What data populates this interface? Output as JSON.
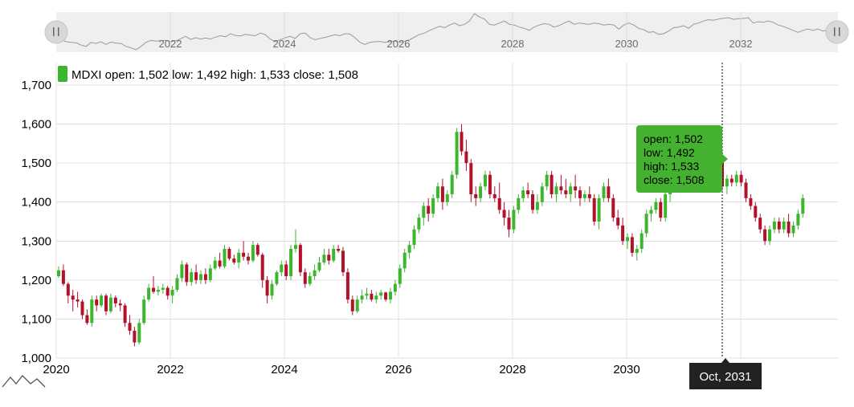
{
  "chart_data": {
    "type": "candlestick",
    "ticker": "MDXI",
    "y_ticks": [
      "1,000",
      "1,100",
      "1,200",
      "1,300",
      "1,400",
      "1,500",
      "1,600",
      "1,700"
    ],
    "y_tick_values": [
      1000,
      1100,
      1200,
      1300,
      1400,
      1500,
      1600,
      1700
    ],
    "ylim": [
      1000,
      1700
    ],
    "x_ticks": [
      "2020",
      "2022",
      "2024",
      "2026",
      "2028",
      "2030",
      "2032"
    ],
    "scrollbar_ticks": [
      "2022",
      "2024",
      "2026",
      "2028",
      "2030",
      "2032"
    ],
    "legend": {
      "label": "MDXI",
      "text": "open: 1,502 low: 1,492 high: 1,533 close: 1,508"
    },
    "tooltip": {
      "open": "open: 1,502",
      "low": "low: 1,492",
      "high": "high: 1,533",
      "close": "close: 1,508"
    },
    "cursor_label": "Oct, 2031",
    "cursor_index": 140,
    "grid": true,
    "colors": {
      "up": "#3cb62d",
      "down": "#b3102a",
      "tooltip": "#44b130",
      "cursor_label_bg": "#222222"
    },
    "start": "2020-01",
    "end": "2033-10",
    "interval": "month",
    "ohlc": [
      [
        1210,
        1205,
        1235,
        1225
      ],
      [
        1225,
        1185,
        1240,
        1190
      ],
      [
        1190,
        1140,
        1195,
        1160
      ],
      [
        1160,
        1120,
        1175,
        1150
      ],
      [
        1150,
        1130,
        1170,
        1145
      ],
      [
        1145,
        1100,
        1150,
        1110
      ],
      [
        1110,
        1085,
        1125,
        1090
      ],
      [
        1090,
        1080,
        1160,
        1150
      ],
      [
        1150,
        1120,
        1160,
        1135
      ],
      [
        1135,
        1130,
        1165,
        1160
      ],
      [
        1160,
        1110,
        1165,
        1120
      ],
      [
        1120,
        1115,
        1165,
        1155
      ],
      [
        1155,
        1130,
        1160,
        1140
      ],
      [
        1140,
        1120,
        1150,
        1135
      ],
      [
        1135,
        1080,
        1140,
        1090
      ],
      [
        1090,
        1060,
        1110,
        1070
      ],
      [
        1070,
        1030,
        1080,
        1040
      ],
      [
        1040,
        1035,
        1100,
        1090
      ],
      [
        1090,
        1085,
        1160,
        1150
      ],
      [
        1150,
        1145,
        1190,
        1180
      ],
      [
        1180,
        1165,
        1210,
        1170
      ],
      [
        1170,
        1160,
        1185,
        1175
      ],
      [
        1175,
        1165,
        1190,
        1180
      ],
      [
        1180,
        1150,
        1185,
        1160
      ],
      [
        1160,
        1140,
        1185,
        1175
      ],
      [
        1175,
        1170,
        1215,
        1205
      ],
      [
        1205,
        1195,
        1250,
        1240
      ],
      [
        1240,
        1185,
        1245,
        1195
      ],
      [
        1195,
        1185,
        1230,
        1220
      ],
      [
        1220,
        1190,
        1240,
        1200
      ],
      [
        1200,
        1190,
        1225,
        1215
      ],
      [
        1215,
        1190,
        1230,
        1200
      ],
      [
        1200,
        1195,
        1240,
        1230
      ],
      [
        1230,
        1225,
        1260,
        1250
      ],
      [
        1250,
        1230,
        1270,
        1235
      ],
      [
        1235,
        1230,
        1290,
        1280
      ],
      [
        1280,
        1250,
        1285,
        1255
      ],
      [
        1255,
        1240,
        1265,
        1245
      ],
      [
        1245,
        1230,
        1280,
        1270
      ],
      [
        1270,
        1250,
        1300,
        1260
      ],
      [
        1260,
        1240,
        1270,
        1250
      ],
      [
        1250,
        1245,
        1300,
        1290
      ],
      [
        1290,
        1260,
        1295,
        1265
      ],
      [
        1265,
        1180,
        1270,
        1200
      ],
      [
        1200,
        1140,
        1210,
        1160
      ],
      [
        1160,
        1150,
        1200,
        1190
      ],
      [
        1190,
        1185,
        1225,
        1220
      ],
      [
        1220,
        1210,
        1250,
        1240
      ],
      [
        1240,
        1200,
        1250,
        1210
      ],
      [
        1210,
        1200,
        1290,
        1280
      ],
      [
        1280,
        1270,
        1330,
        1290
      ],
      [
        1290,
        1210,
        1295,
        1220
      ],
      [
        1220,
        1180,
        1230,
        1190
      ],
      [
        1190,
        1185,
        1220,
        1210
      ],
      [
        1210,
        1200,
        1240,
        1225
      ],
      [
        1225,
        1220,
        1260,
        1245
      ],
      [
        1245,
        1240,
        1280,
        1265
      ],
      [
        1265,
        1240,
        1280,
        1250
      ],
      [
        1250,
        1245,
        1290,
        1280
      ],
      [
        1280,
        1270,
        1290,
        1275
      ],
      [
        1275,
        1210,
        1285,
        1220
      ],
      [
        1220,
        1140,
        1230,
        1150
      ],
      [
        1150,
        1110,
        1160,
        1120
      ],
      [
        1120,
        1115,
        1160,
        1150
      ],
      [
        1150,
        1140,
        1175,
        1160
      ],
      [
        1160,
        1150,
        1180,
        1165
      ],
      [
        1165,
        1145,
        1175,
        1150
      ],
      [
        1150,
        1140,
        1170,
        1160
      ],
      [
        1160,
        1150,
        1175,
        1168
      ],
      [
        1168,
        1145,
        1170,
        1150
      ],
      [
        1150,
        1140,
        1180,
        1170
      ],
      [
        1170,
        1160,
        1200,
        1190
      ],
      [
        1190,
        1180,
        1240,
        1230
      ],
      [
        1230,
        1220,
        1280,
        1270
      ],
      [
        1270,
        1255,
        1300,
        1290
      ],
      [
        1290,
        1280,
        1340,
        1330
      ],
      [
        1330,
        1320,
        1370,
        1360
      ],
      [
        1360,
        1340,
        1400,
        1390
      ],
      [
        1390,
        1350,
        1410,
        1370
      ],
      [
        1370,
        1360,
        1420,
        1410
      ],
      [
        1410,
        1400,
        1450,
        1440
      ],
      [
        1440,
        1380,
        1460,
        1400
      ],
      [
        1400,
        1390,
        1430,
        1420
      ],
      [
        1420,
        1410,
        1480,
        1470
      ],
      [
        1470,
        1460,
        1590,
        1580
      ],
      [
        1580,
        1520,
        1600,
        1530
      ],
      [
        1530,
        1480,
        1560,
        1500
      ],
      [
        1500,
        1400,
        1510,
        1420
      ],
      [
        1420,
        1390,
        1440,
        1410
      ],
      [
        1410,
        1400,
        1450,
        1440
      ],
      [
        1440,
        1430,
        1480,
        1470
      ],
      [
        1470,
        1410,
        1480,
        1420
      ],
      [
        1420,
        1400,
        1440,
        1410
      ],
      [
        1410,
        1370,
        1450,
        1380
      ],
      [
        1380,
        1340,
        1400,
        1360
      ],
      [
        1360,
        1310,
        1380,
        1330
      ],
      [
        1330,
        1320,
        1390,
        1380
      ],
      [
        1380,
        1370,
        1420,
        1410
      ],
      [
        1410,
        1400,
        1440,
        1430
      ],
      [
        1430,
        1410,
        1450,
        1420
      ],
      [
        1420,
        1370,
        1430,
        1380
      ],
      [
        1380,
        1370,
        1420,
        1400
      ],
      [
        1400,
        1390,
        1450,
        1440
      ],
      [
        1440,
        1430,
        1480,
        1470
      ],
      [
        1470,
        1410,
        1480,
        1420
      ],
      [
        1420,
        1400,
        1450,
        1440
      ],
      [
        1440,
        1420,
        1470,
        1430
      ],
      [
        1430,
        1410,
        1460,
        1420
      ],
      [
        1420,
        1400,
        1450,
        1440
      ],
      [
        1440,
        1410,
        1470,
        1430
      ],
      [
        1430,
        1390,
        1440,
        1410
      ],
      [
        1410,
        1400,
        1430,
        1420
      ],
      [
        1420,
        1400,
        1440,
        1410
      ],
      [
        1410,
        1340,
        1420,
        1350
      ],
      [
        1350,
        1330,
        1420,
        1410
      ],
      [
        1410,
        1400,
        1450,
        1440
      ],
      [
        1440,
        1400,
        1460,
        1410
      ],
      [
        1410,
        1350,
        1420,
        1360
      ],
      [
        1360,
        1330,
        1380,
        1340
      ],
      [
        1340,
        1290,
        1360,
        1300
      ],
      [
        1300,
        1280,
        1320,
        1310
      ],
      [
        1310,
        1260,
        1320,
        1270
      ],
      [
        1270,
        1250,
        1290,
        1280
      ],
      [
        1280,
        1270,
        1330,
        1320
      ],
      [
        1320,
        1310,
        1380,
        1370
      ],
      [
        1370,
        1350,
        1390,
        1380
      ],
      [
        1380,
        1370,
        1410,
        1400
      ],
      [
        1400,
        1350,
        1410,
        1360
      ],
      [
        1360,
        1350,
        1430,
        1420
      ],
      [
        1420,
        1400,
        1450,
        1440
      ],
      [
        1440,
        1430,
        1480,
        1470
      ],
      [
        1470,
        1460,
        1500,
        1490
      ],
      [
        1490,
        1460,
        1510,
        1480
      ],
      [
        1480,
        1470,
        1520,
        1500
      ],
      [
        1500,
        1490,
        1530,
        1510
      ],
      [
        1510,
        1500,
        1540,
        1520
      ],
      [
        1520,
        1490,
        1525,
        1495
      ],
      [
        1495,
        1480,
        1515,
        1505
      ],
      [
        1505,
        1492,
        1533,
        1508
      ],
      [
        1508,
        1500,
        1540,
        1520
      ],
      [
        1520,
        1430,
        1530,
        1440
      ],
      [
        1440,
        1420,
        1470,
        1460
      ],
      [
        1460,
        1440,
        1470,
        1450
      ],
      [
        1450,
        1440,
        1480,
        1470
      ],
      [
        1470,
        1440,
        1480,
        1450
      ],
      [
        1450,
        1400,
        1460,
        1410
      ],
      [
        1410,
        1380,
        1420,
        1390
      ],
      [
        1390,
        1350,
        1400,
        1360
      ],
      [
        1360,
        1320,
        1370,
        1330
      ],
      [
        1330,
        1290,
        1340,
        1300
      ],
      [
        1300,
        1290,
        1340,
        1330
      ],
      [
        1330,
        1320,
        1360,
        1350
      ],
      [
        1350,
        1320,
        1360,
        1330
      ],
      [
        1330,
        1320,
        1360,
        1350
      ],
      [
        1350,
        1310,
        1370,
        1320
      ],
      [
        1320,
        1310,
        1350,
        1340
      ],
      [
        1340,
        1330,
        1380,
        1370
      ],
      [
        1370,
        1360,
        1420,
        1410
      ]
    ]
  }
}
